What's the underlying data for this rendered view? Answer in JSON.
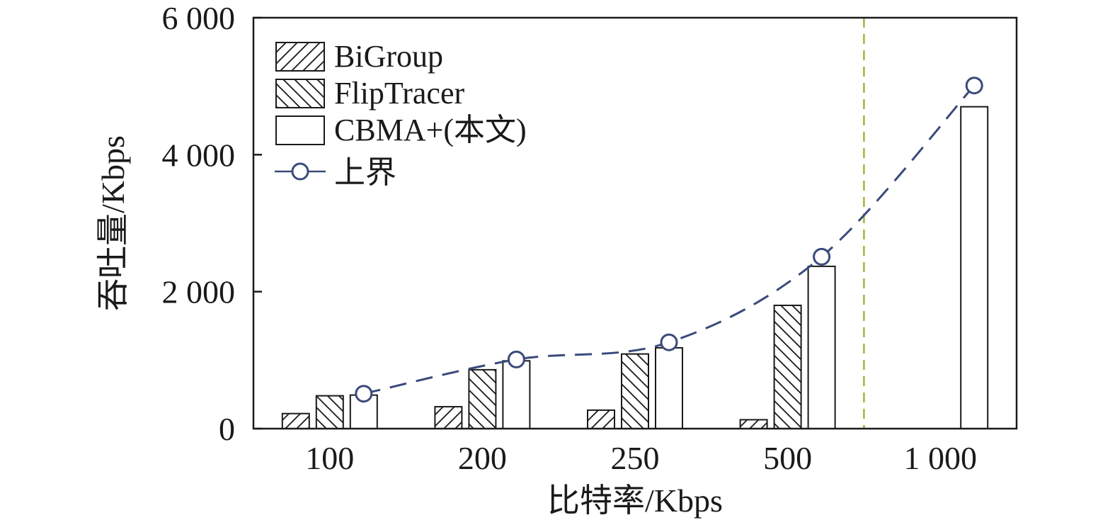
{
  "chart_data": {
    "type": "bar",
    "categories": [
      "100",
      "200",
      "250",
      "500",
      "1 000"
    ],
    "xlabel": "比特率/Kbps",
    "ylabel": "吞吐量/Kbps",
    "ylim": [
      0,
      6000
    ],
    "yticks": [
      0,
      2000,
      4000,
      6000
    ],
    "ytick_labels": [
      "0",
      "2 000",
      "4 000",
      "6 000"
    ],
    "grid": false,
    "legend_position": "top-left",
    "series": [
      {
        "name": "BiGroup",
        "values": [
          220,
          320,
          270,
          130,
          null
        ],
        "pattern": "forward-hatch",
        "color": "#ffffff"
      },
      {
        "name": "FlipTracer",
        "values": [
          480,
          860,
          1090,
          1800,
          null
        ],
        "pattern": "backward-hatch",
        "color": "#ffffff"
      },
      {
        "name": "CBMA+(本文)",
        "values": [
          490,
          990,
          1180,
          2370,
          4700
        ],
        "pattern": "none",
        "color": "#ffffff"
      }
    ],
    "line_series": {
      "name": "上界",
      "values": [
        510,
        1010,
        1260,
        2510,
        5010
      ],
      "style": "dashed",
      "marker": "circle",
      "color": "#3a4a7a"
    },
    "reference_line": {
      "orientation": "vertical",
      "between_categories": [
        "500",
        "1 000"
      ],
      "style": "dashed",
      "color": "#a8b23a"
    }
  }
}
